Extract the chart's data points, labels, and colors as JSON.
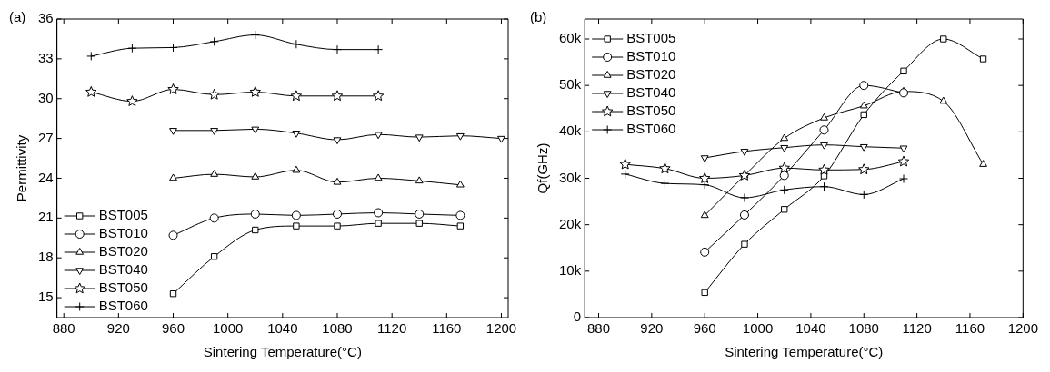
{
  "chart_data": [
    {
      "type": "line",
      "title": "(a)",
      "xlabel": "Sintering Temperature(°C)",
      "ylabel": "Permittivity",
      "xlim": [
        875,
        1205
      ],
      "xticks": [
        880,
        920,
        960,
        1000,
        1040,
        1080,
        1120,
        1160,
        1200
      ],
      "ylim": [
        13.5,
        36
      ],
      "yticks": [
        15,
        18,
        21,
        24,
        27,
        30,
        33,
        36
      ],
      "grid": false,
      "legend": "bottom left",
      "line_style": "solid",
      "series": [
        {
          "name": "BST005",
          "color": "#000000",
          "marker": "square",
          "x": [
            960,
            990,
            1020,
            1050,
            1080,
            1110,
            1140,
            1170
          ],
          "values": [
            15.3,
            18.1,
            20.1,
            20.4,
            20.4,
            20.6,
            20.6,
            20.4
          ]
        },
        {
          "name": "BST010",
          "color": "#000000",
          "marker": "circle",
          "x": [
            960,
            990,
            1020,
            1050,
            1080,
            1110,
            1140,
            1170
          ],
          "values": [
            19.7,
            21.0,
            21.3,
            21.2,
            21.3,
            21.4,
            21.3,
            21.2
          ]
        },
        {
          "name": "BST020",
          "color": "#000000",
          "marker": "triangle",
          "x": [
            960,
            990,
            1020,
            1050,
            1080,
            1110,
            1140,
            1170
          ],
          "values": [
            24.0,
            24.3,
            24.1,
            24.6,
            23.7,
            24.0,
            23.8,
            23.5
          ]
        },
        {
          "name": "BST040",
          "color": "#000000",
          "marker": "triangle-down",
          "x": [
            960,
            990,
            1020,
            1050,
            1080,
            1110,
            1140,
            1170,
            1200
          ],
          "values": [
            27.6,
            27.6,
            27.7,
            27.4,
            26.9,
            27.3,
            27.1,
            27.2,
            27.0
          ]
        },
        {
          "name": "BST050",
          "color": "#000000",
          "marker": "star",
          "x": [
            900,
            930,
            960,
            990,
            1020,
            1050,
            1080,
            1110
          ],
          "values": [
            30.5,
            29.8,
            30.7,
            30.3,
            30.5,
            30.2,
            30.2,
            30.2
          ]
        },
        {
          "name": "BST060",
          "color": "#000000",
          "marker": "cross",
          "x": [
            900,
            930,
            960,
            990,
            1020,
            1050,
            1080,
            1110
          ],
          "values": [
            33.2,
            33.8,
            33.85,
            34.3,
            34.8,
            34.1,
            33.7,
            33.7
          ]
        }
      ]
    },
    {
      "type": "line",
      "title": "(b)",
      "xlabel": "Sintering Temperature(°C)",
      "ylabel": "Qf(GHz)",
      "xlim": [
        869.5,
        1200
      ],
      "xticks": [
        880,
        920,
        960,
        1000,
        1040,
        1080,
        1120,
        1160,
        1200
      ],
      "ylim": [
        0,
        64300
      ],
      "yticks": [
        0,
        {
          "value": 10000,
          "label": "10k"
        },
        {
          "value": 20000,
          "label": "20k"
        },
        {
          "value": 30000,
          "label": "30k"
        },
        {
          "value": 40000,
          "label": "40k"
        },
        {
          "value": 50000,
          "label": "50k"
        },
        {
          "value": 60000,
          "label": "60k"
        }
      ],
      "grid": false,
      "legend": "top left",
      "line_style": "solid",
      "series": [
        {
          "name": "BST005",
          "color": "#000000",
          "marker": "square",
          "x": [
            960,
            990,
            1020,
            1050,
            1080,
            1110,
            1140,
            1170
          ],
          "values": [
            5400,
            15800,
            23300,
            30500,
            43700,
            53100,
            60000,
            55700
          ]
        },
        {
          "name": "BST010",
          "color": "#000000",
          "marker": "circle",
          "x": [
            960,
            990,
            1020,
            1050,
            1080,
            1110
          ],
          "values": [
            14100,
            22100,
            30600,
            40400,
            50000,
            48400
          ]
        },
        {
          "name": "BST020",
          "color": "#000000",
          "marker": "triangle",
          "x": [
            960,
            990,
            1020,
            1050,
            1080,
            1110,
            1140,
            1170
          ],
          "values": [
            22000,
            30600,
            38600,
            43000,
            45600,
            48700,
            46600,
            33000
          ]
        },
        {
          "name": "BST040",
          "color": "#000000",
          "marker": "triangle-down",
          "x": [
            960,
            990,
            1020,
            1050,
            1080,
            1110
          ],
          "values": [
            34400,
            35800,
            36600,
            37200,
            36800,
            36500
          ]
        },
        {
          "name": "BST050",
          "color": "#000000",
          "marker": "star",
          "x": [
            900,
            930,
            960,
            990,
            1020,
            1050,
            1080,
            1110
          ],
          "values": [
            33000,
            32100,
            30000,
            30600,
            32200,
            31800,
            31900,
            33600
          ]
        },
        {
          "name": "BST060",
          "color": "#000000",
          "marker": "cross",
          "x": [
            900,
            930,
            960,
            990,
            1020,
            1050,
            1080,
            1110
          ],
          "values": [
            30900,
            28900,
            28600,
            25800,
            27500,
            28200,
            26500,
            29900
          ]
        }
      ]
    }
  ]
}
